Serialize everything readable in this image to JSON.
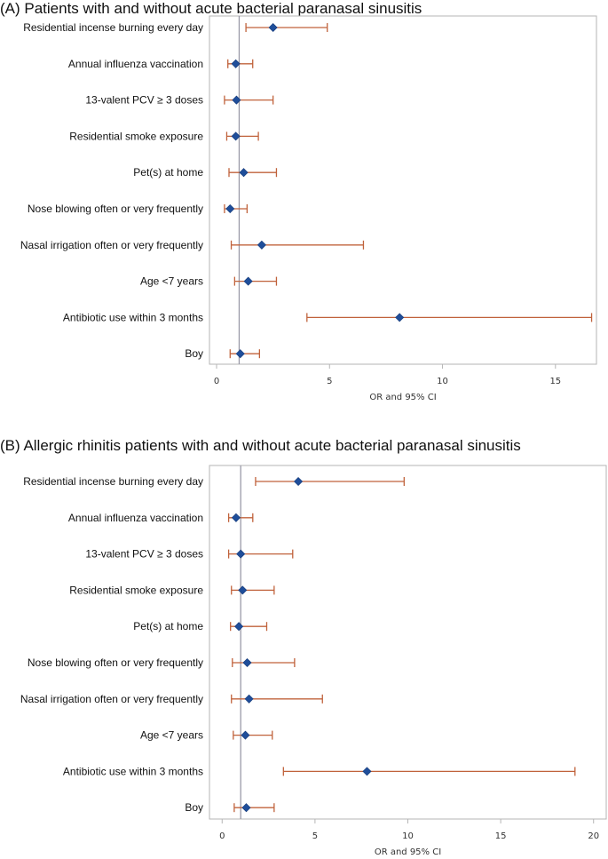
{
  "chart_data": [
    {
      "type": "forest",
      "title": "(A) Patients with and without acute bacterial paranasal sinusitis",
      "xlabel": "OR and 95% CI",
      "xlim": [
        0,
        16.5
      ],
      "xticks": [
        0,
        5,
        10,
        15
      ],
      "reference_line": 1,
      "grid": false,
      "categories": [
        "Residential incense burning every day",
        "Annual influenza vaccination",
        "13-valent PCV ≥ 3 doses",
        "Residential smoke exposure",
        "Pet(s) at home",
        "Nose blowing often or very frequently",
        "Nasal irrigation often or very frequently",
        "Age <7 years",
        "Antibiotic use within 3 months",
        "Boy"
      ],
      "estimate": [
        2.5,
        0.85,
        0.88,
        0.85,
        1.2,
        0.6,
        2.0,
        1.4,
        8.1,
        1.05
      ],
      "lower": [
        1.3,
        0.5,
        0.35,
        0.45,
        0.55,
        0.35,
        0.65,
        0.8,
        4.0,
        0.6
      ],
      "upper": [
        4.9,
        1.6,
        2.5,
        1.85,
        2.65,
        1.35,
        6.5,
        2.65,
        16.6,
        1.9
      ]
    },
    {
      "type": "forest",
      "title": "(B) Allergic rhinitis patients with and without acute bacterial paranasal sinusitis",
      "xlabel": "OR and 95% CI",
      "xlim": [
        -0.3,
        20.3
      ],
      "xticks": [
        0,
        5,
        10,
        15,
        20
      ],
      "reference_line": 1,
      "grid": false,
      "categories": [
        "Residential incense burning every day",
        "Annual influenza vaccination",
        "13-valent PCV  ≥ 3 doses",
        "Residential smoke exposure",
        "Pet(s) at home",
        "Nose blowing often or very frequently",
        "Nasal irrigation often or very frequently",
        "Age <7 years",
        "Antibiotic use within 3 months",
        "Boy"
      ],
      "estimate": [
        4.1,
        0.75,
        1.0,
        1.1,
        0.9,
        1.35,
        1.45,
        1.25,
        7.8,
        1.3
      ],
      "lower": [
        1.8,
        0.35,
        0.35,
        0.5,
        0.45,
        0.55,
        0.5,
        0.6,
        3.3,
        0.65
      ],
      "upper": [
        9.8,
        1.65,
        3.8,
        2.8,
        2.4,
        3.9,
        5.4,
        2.7,
        19.0,
        2.8
      ]
    }
  ]
}
